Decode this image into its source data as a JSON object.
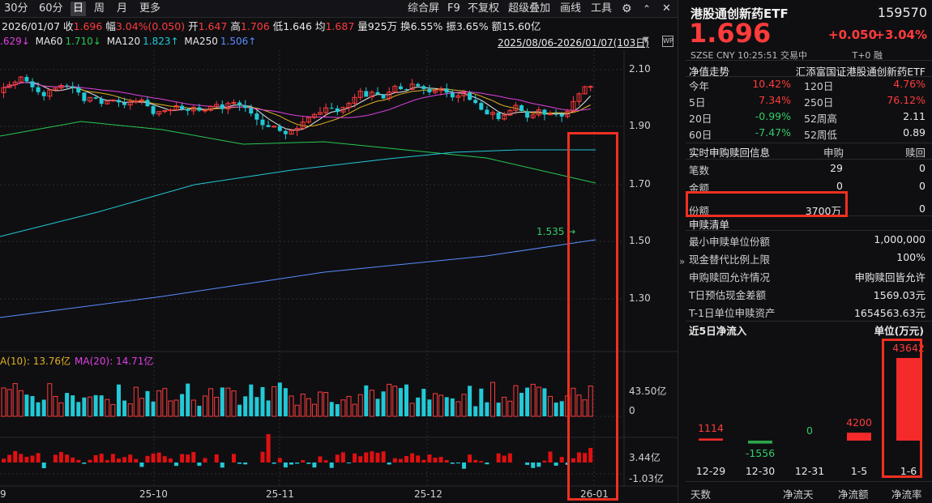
{
  "toolbar": {
    "periods": [
      "30分",
      "60分",
      "日",
      "周",
      "月",
      "更多"
    ],
    "active_period": "日",
    "summary": {
      "date": "2026/01/07",
      "close_label": "收",
      "close": "1.696",
      "amp_label": "幅",
      "amp": "3.04%(0.050)",
      "open_label": "开",
      "open": "1.647",
      "high_label": "高",
      "high": "1.706",
      "low_label": "低",
      "low": "1.646",
      "avg_label": "均",
      "avg": "1.687",
      "vol_label": "量",
      "vol": "925万",
      "turn_label": "换",
      "turn": "6.55%",
      "swing_label": "振",
      "swing": "3.65%",
      "amount_label": "额",
      "amount": "15.60亿"
    },
    "right_buttons": [
      "综合屏",
      "F9",
      "不复权",
      "超级叠加",
      "画线",
      "工具"
    ]
  },
  "ma": [
    {
      "name": "",
      "value": ".629↓",
      "color": "#e040e0"
    },
    {
      "name": "MA60",
      "value": "1.710↓",
      "color": "#28c850"
    },
    {
      "name": "MA120",
      "value": "1.823↑",
      "color": "#22c9d6"
    },
    {
      "name": "MA250",
      "value": "1.506↑",
      "color": "#5a8cff"
    }
  ],
  "range_label": "2025/08/06-2026/01/07(103日)",
  "price_axis": [
    "2.10",
    "1.90",
    "1.70",
    "1.50",
    "1.30"
  ],
  "min_marker": "1.535",
  "vol_ma": {
    "ma10": "A(10): 13.76亿",
    "ma20": "MA(20): 14.71亿"
  },
  "vol_axis": [
    "43.50亿",
    "0"
  ],
  "flow_axis": [
    "3.44亿",
    "-1.03亿"
  ],
  "x_axis": [
    "9",
    "25-10",
    "25-11",
    "25-12",
    "26-01"
  ],
  "quote": {
    "name": "港股通创新药ETF",
    "code": "159570",
    "price": "1.696",
    "change": "+0.050",
    "change_pct": "+3.04%",
    "meta": [
      "SZSE",
      "CNY",
      "10:25:51",
      "交易中",
      "T+0",
      "融"
    ]
  },
  "nav": {
    "title": "净值走势",
    "fund_name": "汇添富国证港股通创新药ETF",
    "rows": [
      {
        "l1": "今年",
        "v1": "10.42%",
        "c1": "red",
        "l2": "120日",
        "v2": "4.76%",
        "c2": "red"
      },
      {
        "l1": "5日",
        "v1": "7.34%",
        "c1": "red",
        "l2": "250日",
        "v2": "76.12%",
        "c2": "red"
      },
      {
        "l1": "20日",
        "v1": "-0.99%",
        "c1": "green",
        "l2": "52周高",
        "v2": "2.11",
        "c2": "white"
      },
      {
        "l1": "60日",
        "v1": "-7.47%",
        "c1": "green",
        "l2": "52周低",
        "v2": "0.89",
        "c2": "white"
      }
    ]
  },
  "creation": {
    "title": "实时申购赎回信息",
    "col1": "申购",
    "col2": "赎回",
    "rows": [
      {
        "label": "笔数",
        "sub": "29",
        "red": "0"
      },
      {
        "label": "金额",
        "sub": "0",
        "red": "0"
      },
      {
        "label": "份额",
        "sub": "3700万",
        "red": "0"
      }
    ]
  },
  "pcf": {
    "title": "申赎清单",
    "rows": [
      {
        "label": "最小申赎单位份额",
        "value": "1,000,000"
      },
      {
        "label": "现金替代比例上限",
        "value": "100%"
      },
      {
        "label": "申购赎回允许情况",
        "value": "申购赎回皆允许"
      },
      {
        "label": "T日预估现金差额",
        "value": "1569.03元"
      },
      {
        "label": "T-1日单位申赎资产",
        "value": "1654563.63元"
      }
    ]
  },
  "flow5": {
    "title": "近5日净流入",
    "unit": "单位(万元)",
    "bars": [
      {
        "date": "12-29",
        "value": 1114,
        "label": "1114"
      },
      {
        "date": "12-30",
        "value": -1556,
        "label": "-1556"
      },
      {
        "date": "12-31",
        "value": 0,
        "label": "0"
      },
      {
        "date": "1-5",
        "value": 4200,
        "label": "4200"
      },
      {
        "date": "1-6",
        "value": 43642,
        "label": "43642"
      }
    ],
    "footer": [
      "天数",
      "净流天",
      "净流额",
      "净流率"
    ]
  },
  "colors": {
    "up": "#ff3b3b",
    "down": "#22c9d6",
    "flow_down": "#33cc66"
  }
}
